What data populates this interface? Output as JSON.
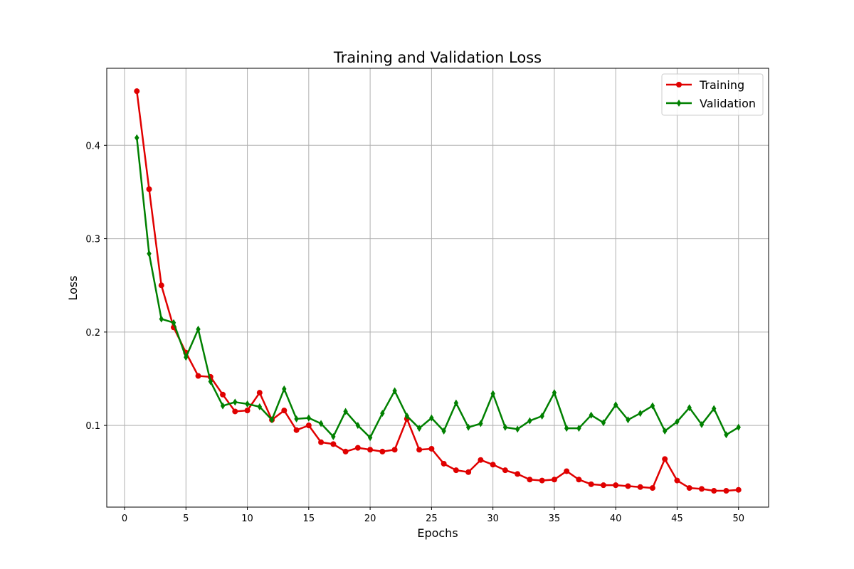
{
  "chart_data": {
    "type": "line",
    "title": "Training and Validation Loss",
    "xlabel": "Epochs",
    "ylabel": "Loss",
    "xlim": [
      -1.45,
      52.45
    ],
    "ylim": [
      0.0125,
      0.4825
    ],
    "xticks": [
      0,
      5,
      10,
      15,
      20,
      25,
      30,
      35,
      40,
      45,
      50
    ],
    "yticks": [
      0.1,
      0.2,
      0.3,
      0.4
    ],
    "ytick_labels": [
      "0.1",
      "0.2",
      "0.3",
      "0.4"
    ],
    "grid": true,
    "legend_position": "top-right",
    "x": [
      1,
      2,
      3,
      4,
      5,
      6,
      7,
      8,
      9,
      10,
      11,
      12,
      13,
      14,
      15,
      16,
      17,
      18,
      19,
      20,
      21,
      22,
      23,
      24,
      25,
      26,
      27,
      28,
      29,
      30,
      31,
      32,
      33,
      34,
      35,
      36,
      37,
      38,
      39,
      40,
      41,
      42,
      43,
      44,
      45,
      46,
      47,
      48,
      49,
      50
    ],
    "series": [
      {
        "name": "Training",
        "color": "#e00000",
        "marker": "circle",
        "values": [
          0.458,
          0.353,
          0.25,
          0.205,
          0.178,
          0.153,
          0.152,
          0.133,
          0.115,
          0.116,
          0.135,
          0.106,
          0.116,
          0.095,
          0.1,
          0.082,
          0.08,
          0.072,
          0.076,
          0.074,
          0.072,
          0.074,
          0.107,
          0.074,
          0.075,
          0.059,
          0.052,
          0.05,
          0.063,
          0.058,
          0.052,
          0.048,
          0.042,
          0.041,
          0.042,
          0.051,
          0.042,
          0.037,
          0.036,
          0.036,
          0.035,
          0.034,
          0.033,
          0.064,
          0.041,
          0.033,
          0.032,
          0.03,
          0.03,
          0.031
        ]
      },
      {
        "name": "Validation",
        "color": "#008000",
        "marker": "diamond",
        "values": [
          0.408,
          0.284,
          0.214,
          0.21,
          0.173,
          0.203,
          0.147,
          0.121,
          0.125,
          0.123,
          0.12,
          0.106,
          0.139,
          0.107,
          0.108,
          0.102,
          0.088,
          0.115,
          0.1,
          0.087,
          0.113,
          0.137,
          0.11,
          0.097,
          0.108,
          0.094,
          0.124,
          0.098,
          0.102,
          0.134,
          0.098,
          0.096,
          0.105,
          0.11,
          0.135,
          0.097,
          0.097,
          0.111,
          0.103,
          0.122,
          0.106,
          0.113,
          0.121,
          0.094,
          0.104,
          0.119,
          0.101,
          0.118,
          0.09,
          0.098
        ]
      }
    ]
  }
}
